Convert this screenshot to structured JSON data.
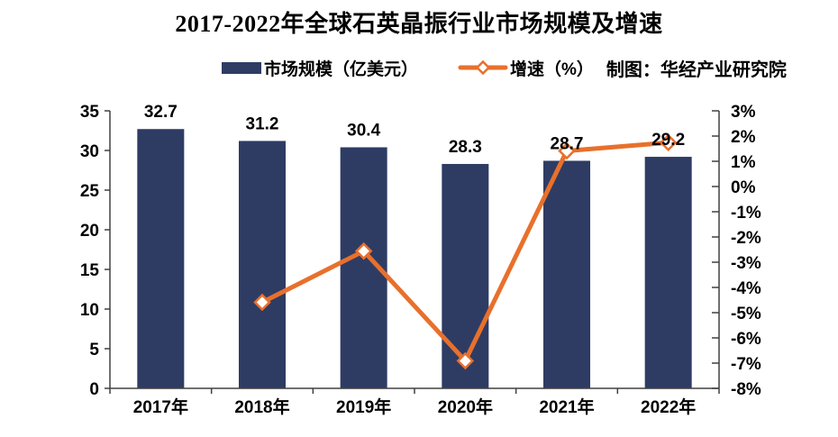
{
  "title": "2017-2022年全球石英晶振行业市场规模及增速",
  "legend": {
    "bars": "市场规模（亿美元）",
    "line": "增速（%）"
  },
  "credit": "制图：华经产业研究院",
  "colors": {
    "bar": "#2e3c64",
    "line": "#e8702c",
    "marker_fill": "#ffffff",
    "axis": "#404040",
    "text": "#000000"
  },
  "chart_data": {
    "type": "bar",
    "subtype": "bar-line-combo",
    "title": "2017-2022年全球石英晶振行业市场规模及增速",
    "categories": [
      "2017年",
      "2018年",
      "2019年",
      "2020年",
      "2021年",
      "2022年"
    ],
    "series": [
      {
        "name": "市场规模（亿美元）",
        "type": "bar",
        "axis": "left",
        "values": [
          32.7,
          31.2,
          30.4,
          28.3,
          28.7,
          29.2
        ],
        "labels": [
          "32.7",
          "31.2",
          "30.4",
          "28.3",
          "28.7",
          "29.2"
        ]
      },
      {
        "name": "增速（%）",
        "type": "line",
        "axis": "right",
        "values": [
          null,
          -4.59,
          -2.56,
          -6.91,
          1.41,
          1.74
        ]
      }
    ],
    "left_axis": {
      "min": 0,
      "max": 35,
      "step": 5,
      "ticks": [
        "0",
        "5",
        "10",
        "15",
        "20",
        "25",
        "30",
        "35"
      ]
    },
    "right_axis": {
      "min": -8,
      "max": 3,
      "step": 1,
      "ticks": [
        "-8%",
        "-7%",
        "-6%",
        "-5%",
        "-4%",
        "-3%",
        "-2%",
        "-1%",
        "0%",
        "1%",
        "2%",
        "3%"
      ]
    },
    "grid": false,
    "legend_position": "top"
  }
}
